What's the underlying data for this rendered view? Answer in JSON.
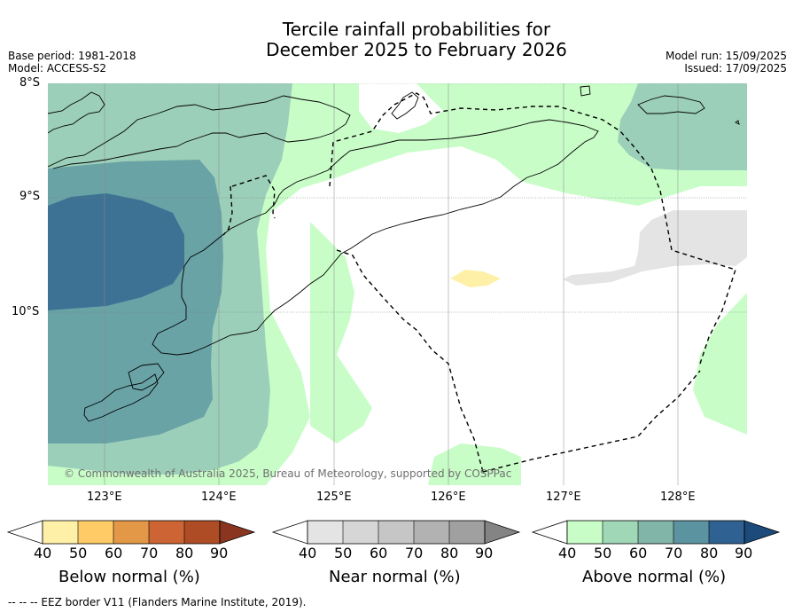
{
  "header": {
    "title_line1": "Tercile rainfall probabilities for",
    "title_line2": "December 2025 to February 2026",
    "base_period": "Base period: 1981-2018",
    "model": "Model: ACCESS-S2",
    "model_run": "Model run: 15/09/2025",
    "issued": "Issued: 17/09/2025"
  },
  "map": {
    "lat_labels": [
      "8°S",
      "9°S",
      "10°S"
    ],
    "lon_labels": [
      "123°E",
      "124°E",
      "125°E",
      "126°E",
      "127°E",
      "128°E"
    ],
    "copyright": "© Commonwealth of Australia 2025, Bureau of Meteorology, supported by COSPPac"
  },
  "legends": [
    {
      "label": "Below normal (%)",
      "ticks": [
        "40",
        "50",
        "60",
        "70",
        "80",
        "90"
      ],
      "colors": [
        "#fff0a8",
        "#fecb66",
        "#e29847",
        "#cc6433",
        "#ae4d25",
        "#8a3520"
      ]
    },
    {
      "label": "Near normal (%)",
      "ticks": [
        "40",
        "50",
        "60",
        "70",
        "80",
        "90"
      ],
      "colors": [
        "#e4e4e4",
        "#d6d6d6",
        "#c6c6c6",
        "#b2b2b2",
        "#a0a0a0",
        "#848484"
      ]
    },
    {
      "label": "Above normal (%)",
      "ticks": [
        "40",
        "50",
        "60",
        "70",
        "80",
        "90"
      ],
      "colors": [
        "#c8fdc8",
        "#a0d7b7",
        "#80b5a8",
        "#5b93a0",
        "#2f6293",
        "#1b4a7b"
      ]
    }
  ],
  "footer": "--  --  -- EEZ border V11 (Flanders Marine Institute, 2019).",
  "colors": {
    "above_40": "#c8fdc8",
    "above_50": "#9ccfb9",
    "above_60": "#6aa3a6",
    "above_70": "#3d7294",
    "below_40": "#fff0a8",
    "near_40": "#e4e4e4"
  }
}
